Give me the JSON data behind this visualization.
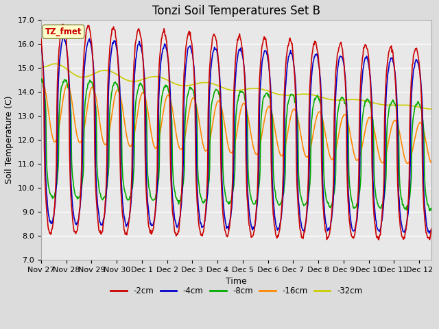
{
  "title": "Tonzi Soil Temperatures Set B",
  "xlabel": "Time",
  "ylabel": "Soil Temperature (C)",
  "ylim": [
    7.0,
    17.0
  ],
  "yticks": [
    7.0,
    8.0,
    9.0,
    10.0,
    11.0,
    12.0,
    13.0,
    14.0,
    15.0,
    16.0,
    17.0
  ],
  "legend_labels": [
    "-2cm",
    "-4cm",
    "-8cm",
    "-16cm",
    "-32cm"
  ],
  "legend_colors": [
    "#cc0000",
    "#0000cc",
    "#00aa00",
    "#ff8800",
    "#cccc00"
  ],
  "xtick_labels": [
    "Nov 27",
    "Nov 28",
    "Nov 29",
    "Nov 30",
    "Dec 1",
    "Dec 2",
    "Dec 3",
    "Dec 4",
    "Dec 5",
    "Dec 6",
    "Dec 7",
    "Dec 8",
    "Dec 9",
    "Dec 10",
    "Dec 11",
    "Dec 12"
  ],
  "annotation_text": "TZ_fmet",
  "annotation_color": "#cc0000",
  "annotation_bg": "#ffffcc",
  "bg_color": "#dcdcdc",
  "plot_bg_color": "#e8e8e8",
  "grid_color": "#ffffff",
  "title_fontsize": 12,
  "label_fontsize": 9,
  "tick_fontsize": 8
}
